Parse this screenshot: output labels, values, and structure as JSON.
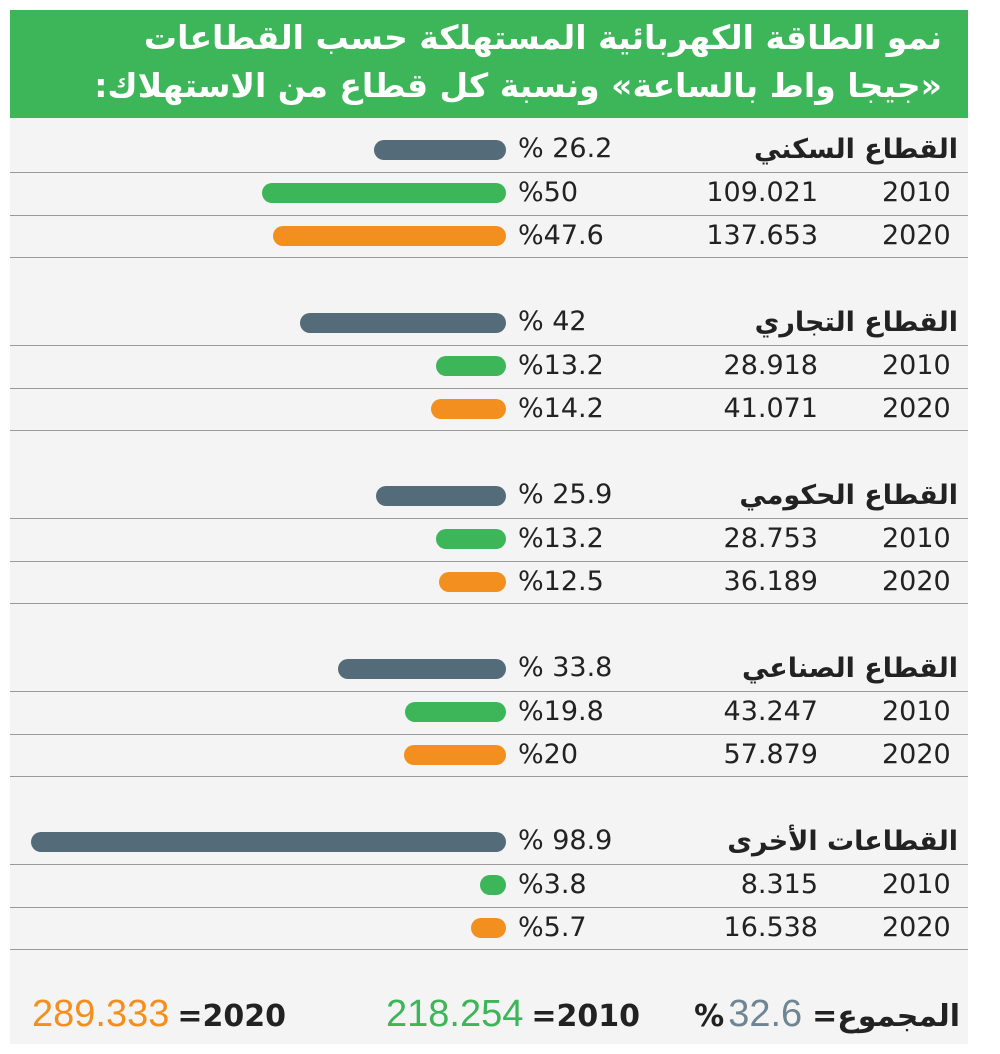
{
  "header": {
    "title_line1": "نمو الطاقة الكهربائية المستهلكة حسب القطاعات",
    "title_line2": "«جيجا واط بالساعة» ونسبة كل قطاع من الاستهلاك:"
  },
  "colors": {
    "growth": "#546b79",
    "y2010": "#3db559",
    "y2020": "#f38f1e",
    "header_bg": "#3db559"
  },
  "chart_data": {
    "type": "bar",
    "title": "نمو الطاقة الكهربائية المستهلكة حسب القطاعات «جيجا واط بالساعة» ونسبة كل قطاع من الاستهلاك:",
    "sectors": [
      {
        "name": "القطاع السكني",
        "growth_label": "% 26.2",
        "growth": 26.2,
        "rows": [
          {
            "year": "2010",
            "value": "109.021",
            "share_label": "%50",
            "share": 50
          },
          {
            "year": "2020",
            "value": "137.653",
            "share_label": "%47.6",
            "share": 47.6
          }
        ]
      },
      {
        "name": "القطاع التجاري",
        "growth_label": "% 42",
        "growth": 42,
        "rows": [
          {
            "year": "2010",
            "value": "28.918",
            "share_label": "%13.2",
            "share": 13.2
          },
          {
            "year": "2020",
            "value": "41.071",
            "share_label": "%14.2",
            "share": 14.2
          }
        ]
      },
      {
        "name": "القطاع الحكومي",
        "growth_label": "% 25.9",
        "growth": 25.9,
        "rows": [
          {
            "year": "2010",
            "value": "28.753",
            "share_label": "%13.2",
            "share": 13.2
          },
          {
            "year": "2020",
            "value": "36.189",
            "share_label": "%12.5",
            "share": 12.5
          }
        ]
      },
      {
        "name": "القطاع الصناعي",
        "growth_label": "% 33.8",
        "growth": 33.8,
        "rows": [
          {
            "year": "2010",
            "value": "43.247",
            "share_label": "%19.8",
            "share": 19.8
          },
          {
            "year": "2020",
            "value": "57.879",
            "share_label": "%20",
            "share": 20
          }
        ]
      },
      {
        "name": "القطاعات الأخرى",
        "growth_label": "% 98.9",
        "growth": 98.9,
        "rows": [
          {
            "year": "2010",
            "value": "8.315",
            "share_label": "%3.8",
            "share": 3.8
          },
          {
            "year": "2020",
            "value": "16.538",
            "share_label": "%5.7",
            "share": 5.7
          }
        ]
      }
    ]
  },
  "footer": {
    "total_label": "المجموع=",
    "total_growth": "32.6",
    "total_pct_sign": "%",
    "y2010_label": "2010=",
    "y2010_value": "218.254",
    "y2020_label": "2020=",
    "y2020_value": "289.333"
  }
}
